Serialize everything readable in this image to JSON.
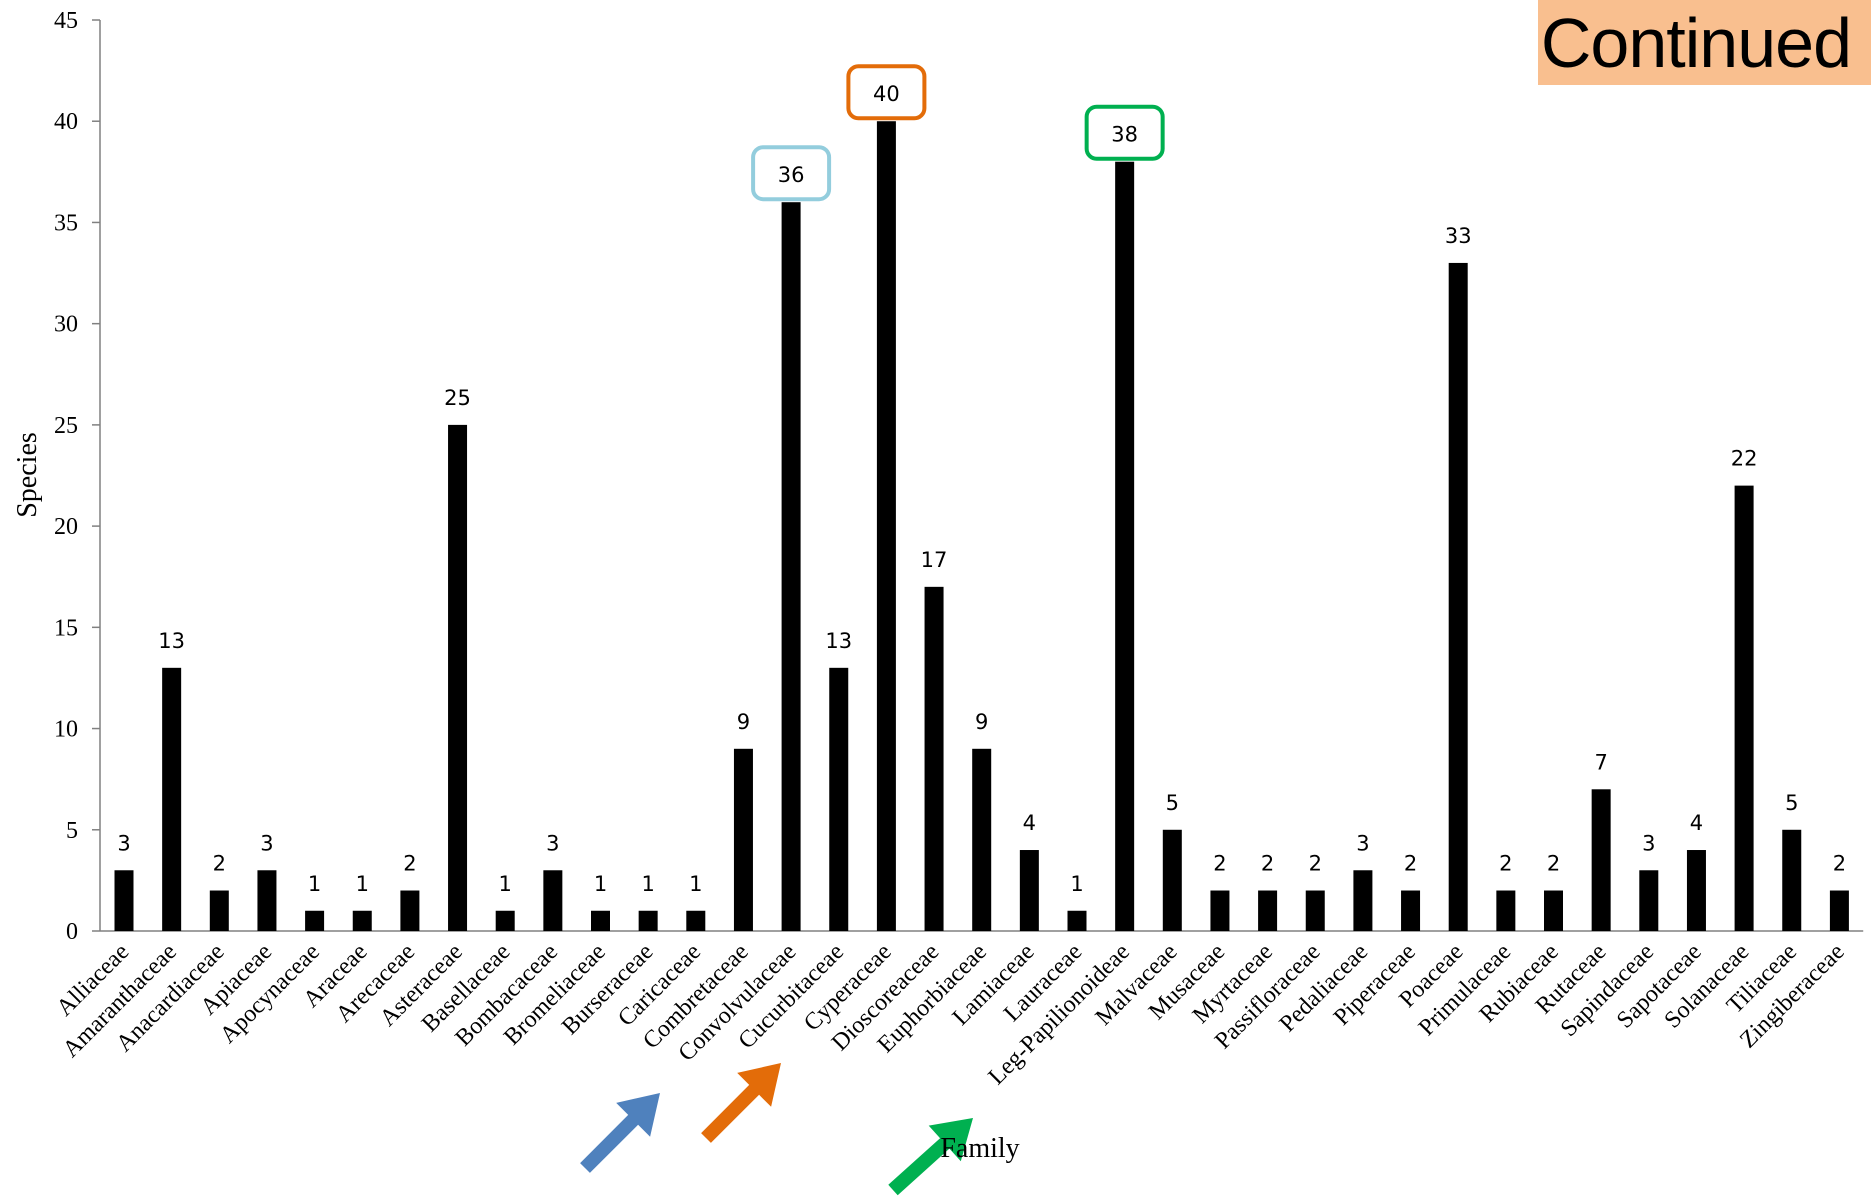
{
  "badge": {
    "text": "Continued",
    "color": "#f9bf8f"
  },
  "chart_data": {
    "type": "bar",
    "title": "",
    "xlabel": "Family",
    "ylabel": "Species",
    "ylim": [
      0,
      45
    ],
    "yticks": [
      0,
      5,
      10,
      15,
      20,
      25,
      30,
      35,
      40,
      45
    ],
    "grid": false,
    "bar_color": "#000000",
    "categories": [
      "Alliaceae",
      "Amaranthaceae",
      "Anacardiaceae",
      "Apiaceae",
      "Apocynaceae",
      "Araceae",
      "Arecaceae",
      "Asteraceae",
      "Basellaceae",
      "Bombacaceae",
      "Bromeliaceae",
      "Burseraceae",
      "Caricaceae",
      "Combretaceae",
      "Convolvulaceae",
      "Cucurbitaceae",
      "Cyperaceae",
      "Dioscoreaceae",
      "Euphorbiaceae",
      "Lamiaceae",
      "Lauraceae",
      "Leg-Papilionoideae",
      "Malvaceae",
      "Musaceae",
      "Myrtaceae",
      "Passifloraceae",
      "Pedaliaceae",
      "Piperaceae",
      "Poaceae",
      "Primulaceae",
      "Rubiaceae",
      "Rutaceae",
      "Sapindaceae",
      "Sapotaceae",
      "Solanaceae",
      "Tiliaceae",
      "Zingiberaceae"
    ],
    "values": [
      3,
      13,
      2,
      3,
      1,
      1,
      2,
      25,
      1,
      3,
      1,
      1,
      1,
      9,
      36,
      13,
      40,
      17,
      9,
      4,
      1,
      38,
      5,
      2,
      2,
      2,
      3,
      2,
      33,
      2,
      2,
      7,
      3,
      4,
      22,
      5,
      2
    ],
    "highlights": [
      {
        "category": "Convolvulaceae",
        "color": "#93cddd"
      },
      {
        "category": "Cyperaceae",
        "color": "#e36c09"
      },
      {
        "category": "Leg-Papilionoideae",
        "color": "#00b050"
      }
    ],
    "arrows": [
      {
        "target": "Convolvulaceae",
        "color": "#4f81bd"
      },
      {
        "target": "Cucurbitaceae",
        "color": "#e36c09"
      },
      {
        "target": "Leg-Papilionoideae",
        "color": "#00b050"
      }
    ]
  }
}
